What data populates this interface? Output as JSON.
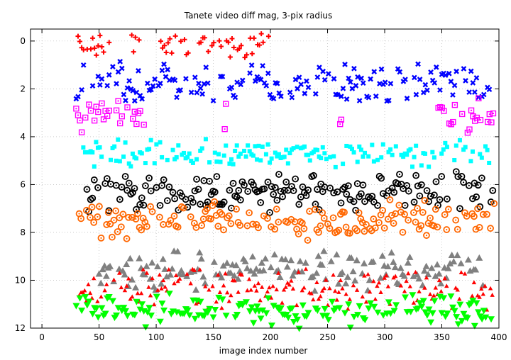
{
  "chart_data": {
    "type": "scatter",
    "title": "Tanete video diff mag, 3-pix radius",
    "xlabel": "image index number",
    "ylabel": "",
    "xlim": [
      -10,
      400
    ],
    "ylim": [
      12,
      -0.5
    ],
    "y_reversed": true,
    "grid": true,
    "legend": "none",
    "x_ticks": [
      0,
      50,
      100,
      150,
      200,
      250,
      300,
      350,
      400
    ],
    "y_ticks": [
      0,
      2,
      4,
      6,
      8,
      10,
      12
    ],
    "series": [
      {
        "color": "#ff0000",
        "marker": "plus",
        "center": 0.1,
        "spread": 0.6,
        "segments": [
          [
            30,
            60
          ],
          [
            77,
            85
          ],
          [
            104,
            199
          ]
        ]
      },
      {
        "color": "#0000ff",
        "marker": "cross",
        "center": 1.75,
        "spread": 0.9,
        "segments": [
          [
            30,
            396
          ]
        ]
      },
      {
        "color": "#ff00ff",
        "marker": "square-dot",
        "center": 3.15,
        "spread": 0.8,
        "segments": [
          [
            30,
            90
          ],
          [
            160,
            161
          ],
          [
            261,
            262
          ],
          [
            347,
            396
          ]
        ]
      },
      {
        "color": "#00ffff",
        "marker": "square",
        "center": 4.7,
        "spread": 0.7,
        "segments": [
          [
            33,
            392
          ]
        ]
      },
      {
        "color": "#000000",
        "marker": "circle-dot",
        "center": 6.3,
        "spread": 0.9,
        "segments": [
          [
            33,
            396
          ]
        ]
      },
      {
        "color": "#ff6600",
        "marker": "circle-dot",
        "center": 7.5,
        "spread": 0.9,
        "segments": [
          [
            31,
            396
          ]
        ]
      },
      {
        "color": "#808080",
        "marker": "triangle",
        "center": 9.6,
        "spread": 0.9,
        "segments": [
          [
            50,
            390
          ]
        ]
      },
      {
        "color": "#ff0000",
        "marker": "small-triangle",
        "center": 10.35,
        "spread": 1.0,
        "segments": [
          [
            31,
            396
          ]
        ]
      },
      {
        "color": "#00ff00",
        "marker": "down-triangle",
        "center": 11.3,
        "spread": 0.8,
        "segments": [
          [
            30,
            396
          ]
        ]
      }
    ]
  }
}
